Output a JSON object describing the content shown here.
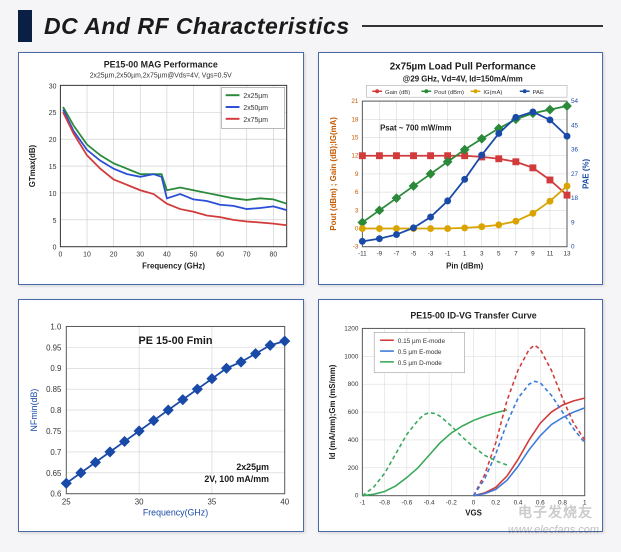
{
  "page": {
    "title": "DC And RF Characteristics",
    "background_color": "#f5f5f7",
    "title_color": "#1a1a1a",
    "title_bar_color": "#0a1f44",
    "watermark_text": "www.elecfans.com",
    "watermark_cn": "电子发烧友"
  },
  "chart_mag": {
    "type": "line",
    "title": "PE15-00 MAG Performance",
    "subtitle": "2x25µm,2x50µm,2x75µm@Vds=4V, Vgs=0.5V",
    "title_fontsize": 9,
    "subtitle_fontsize": 7,
    "xlabel": "Frequency (GHz)",
    "ylabel": "GTmax(dB)",
    "label_fontsize": 8,
    "xlim": [
      0,
      85
    ],
    "ylim": [
      0,
      30
    ],
    "xtick_step": 10,
    "ytick_step": 5,
    "grid_color": "#c9c9c9",
    "background_color": "#ffffff",
    "axis_color": "#333333",
    "legend": [
      {
        "label": "2x25µm",
        "color": "#2a8a3a"
      },
      {
        "label": "2x50µm",
        "color": "#2a4fd6"
      },
      {
        "label": "2x75µm",
        "color": "#d23b3b"
      }
    ],
    "line_width": 1.8,
    "series": {
      "2x25µm": [
        [
          1,
          26
        ],
        [
          5,
          22.5
        ],
        [
          10,
          19
        ],
        [
          15,
          17
        ],
        [
          20,
          15.5
        ],
        [
          25,
          14.5
        ],
        [
          30,
          13.5
        ],
        [
          35,
          13.5
        ],
        [
          38,
          13.5
        ],
        [
          40,
          10.5
        ],
        [
          45,
          11
        ],
        [
          50,
          10.5
        ],
        [
          55,
          10
        ],
        [
          60,
          9.5
        ],
        [
          65,
          9
        ],
        [
          70,
          8.7
        ],
        [
          75,
          9
        ],
        [
          80,
          8.8
        ],
        [
          85,
          8
        ]
      ],
      "2x50µm": [
        [
          1,
          25.5
        ],
        [
          5,
          21.5
        ],
        [
          10,
          18
        ],
        [
          15,
          16
        ],
        [
          20,
          14.5
        ],
        [
          25,
          13.5
        ],
        [
          30,
          13
        ],
        [
          35,
          13.5
        ],
        [
          38,
          13
        ],
        [
          40,
          9
        ],
        [
          45,
          9.8
        ],
        [
          50,
          8.8
        ],
        [
          55,
          8.5
        ],
        [
          60,
          7.8
        ],
        [
          65,
          7.6
        ],
        [
          70,
          7
        ],
        [
          75,
          7.2
        ],
        [
          80,
          7.5
        ],
        [
          85,
          6.8
        ]
      ],
      "2x75µm": [
        [
          1,
          25
        ],
        [
          5,
          21
        ],
        [
          10,
          17
        ],
        [
          15,
          14.5
        ],
        [
          20,
          12.5
        ],
        [
          25,
          11.5
        ],
        [
          30,
          10.5
        ],
        [
          35,
          9.8
        ],
        [
          40,
          8
        ],
        [
          45,
          7
        ],
        [
          50,
          6.5
        ],
        [
          55,
          5.8
        ],
        [
          60,
          5.5
        ],
        [
          65,
          5
        ],
        [
          70,
          4.7
        ],
        [
          75,
          4.5
        ],
        [
          80,
          4.3
        ],
        [
          85,
          4
        ]
      ]
    }
  },
  "chart_loadpull": {
    "type": "multi-line",
    "title": "2x75µm Load Pull Performance",
    "subtitle": "@29 GHz, Vd=4V, Id=150mA/mm",
    "title_fontsize": 10,
    "subtitle_fontsize": 8,
    "annotation": "Psat ~ 700 mW/mm",
    "annotation_fontsize": 8,
    "xlabel": "Pin (dBm)",
    "ylabel_left": "Pout (dBm) ; Gain (dB);IG(mA)",
    "ylabel_right": "PAE (%)",
    "label_fontsize": 8,
    "xlim": [
      -11,
      13
    ],
    "ylim_left": [
      -3,
      21
    ],
    "ylim_right": [
      0,
      54
    ],
    "xtick_step": 2,
    "ytick_left_step": 3,
    "ytick_right_step": 9,
    "grid_color": "#d0d0d0",
    "background_color": "#ffffff",
    "axis_left_color": "#c75a00",
    "axis_right_color": "#1a4aa8",
    "legend": [
      {
        "label": "Gain (dB)",
        "color": "#d23b3b",
        "marker": "square"
      },
      {
        "label": "Pout (dBm)",
        "color": "#2a8a3a",
        "marker": "diamond"
      },
      {
        "label": "IG(mA)",
        "color": "#d9a400",
        "marker": "circle"
      },
      {
        "label": "PAE",
        "color": "#1a4aa8",
        "marker": "circle"
      }
    ],
    "line_width": 1.8,
    "marker_size": 3.5,
    "series": {
      "gain": [
        [
          -11,
          12
        ],
        [
          -9,
          12
        ],
        [
          -7,
          12
        ],
        [
          -5,
          12
        ],
        [
          -3,
          12
        ],
        [
          -1,
          12
        ],
        [
          1,
          12
        ],
        [
          3,
          11.8
        ],
        [
          5,
          11.5
        ],
        [
          7,
          11
        ],
        [
          9,
          10
        ],
        [
          11,
          8
        ],
        [
          13,
          5.5
        ]
      ],
      "pout": [
        [
          -11,
          1
        ],
        [
          -9,
          3
        ],
        [
          -7,
          5
        ],
        [
          -5,
          7
        ],
        [
          -3,
          9
        ],
        [
          -1,
          11
        ],
        [
          1,
          13
        ],
        [
          3,
          14.8
        ],
        [
          5,
          16.5
        ],
        [
          7,
          18
        ],
        [
          9,
          19
        ],
        [
          11,
          19.6
        ],
        [
          13,
          20.2
        ]
      ],
      "ig": [
        [
          -11,
          0
        ],
        [
          -9,
          0
        ],
        [
          -7,
          0
        ],
        [
          -5,
          0
        ],
        [
          -3,
          0
        ],
        [
          -1,
          0
        ],
        [
          1,
          0.1
        ],
        [
          3,
          0.3
        ],
        [
          5,
          0.6
        ],
        [
          7,
          1.2
        ],
        [
          9,
          2.5
        ],
        [
          11,
          4.5
        ],
        [
          13,
          7
        ]
      ],
      "pae": [
        [
          -11,
          2
        ],
        [
          -9,
          3
        ],
        [
          -7,
          4.5
        ],
        [
          -5,
          7
        ],
        [
          -3,
          11
        ],
        [
          -1,
          17
        ],
        [
          1,
          25
        ],
        [
          3,
          34
        ],
        [
          5,
          42
        ],
        [
          7,
          48
        ],
        [
          9,
          50
        ],
        [
          11,
          47
        ],
        [
          13,
          41
        ]
      ]
    }
  },
  "chart_fmin": {
    "type": "line",
    "title": "PE 15-00 Fmin",
    "title_fontsize": 11,
    "xlabel": "Frequency(GHz)",
    "ylabel": "NFmin(dB)",
    "label_fontsize": 9,
    "xlim": [
      25,
      40
    ],
    "ylim": [
      0.6,
      1.0
    ],
    "xticks": [
      25,
      30,
      35,
      40
    ],
    "yticks": [
      0.6,
      0.65,
      0.7,
      0.75,
      0.8,
      0.85,
      0.9,
      0.95,
      1.0
    ],
    "grid_color": "#d0d0d0",
    "background_color": "#ffffff",
    "series_color": "#1a4aa8",
    "marker": "diamond",
    "marker_size": 4,
    "line_width": 1.8,
    "annotation": "2x25µm\n2V, 100 mA/mm",
    "annotation_fontsize": 9,
    "data": [
      [
        25,
        0.625
      ],
      [
        26,
        0.65
      ],
      [
        27,
        0.675
      ],
      [
        28,
        0.7
      ],
      [
        29,
        0.725
      ],
      [
        30,
        0.75
      ],
      [
        31,
        0.775
      ],
      [
        32,
        0.8
      ],
      [
        33,
        0.825
      ],
      [
        34,
        0.85
      ],
      [
        35,
        0.875
      ],
      [
        36,
        0.9
      ],
      [
        37,
        0.915
      ],
      [
        38,
        0.935
      ],
      [
        39,
        0.955
      ],
      [
        40,
        0.965
      ]
    ]
  },
  "chart_idvg": {
    "type": "multi-line",
    "title": "PE15-00 ID-VG Transfer Curve",
    "title_fontsize": 9,
    "xlabel": "VGS",
    "ylabel": "Id (mA/mm);Gm (mS/mm)",
    "label_fontsize": 8,
    "xlim": [
      -1.0,
      1.0
    ],
    "ylim": [
      0,
      1200
    ],
    "xticks": [
      -1.0,
      -0.8,
      -0.6,
      -0.4,
      -0.2,
      0,
      0.2,
      0.4,
      0.6,
      0.8,
      1.0
    ],
    "ytick_step": 200,
    "grid_color": "#d6d6d6",
    "background_color": "#ffffff",
    "legend": [
      {
        "label": "0.15 µm E-mode",
        "color": "#d23b3b"
      },
      {
        "label": "0.5 µm E-mode",
        "color": "#3a7ad9"
      },
      {
        "label": "0.5 µm D-mode",
        "color": "#3aa85a"
      }
    ],
    "line_width": 1.6,
    "series_id": {
      "015E": [
        [
          0.0,
          0
        ],
        [
          0.1,
          20
        ],
        [
          0.2,
          60
        ],
        [
          0.3,
          140
        ],
        [
          0.4,
          260
        ],
        [
          0.5,
          400
        ],
        [
          0.6,
          520
        ],
        [
          0.7,
          600
        ],
        [
          0.8,
          650
        ],
        [
          0.9,
          680
        ],
        [
          1.0,
          700
        ]
      ],
      "05E": [
        [
          0.0,
          0
        ],
        [
          0.1,
          15
        ],
        [
          0.2,
          45
        ],
        [
          0.3,
          110
        ],
        [
          0.4,
          210
        ],
        [
          0.5,
          330
        ],
        [
          0.6,
          430
        ],
        [
          0.7,
          510
        ],
        [
          0.8,
          560
        ],
        [
          0.9,
          600
        ],
        [
          1.0,
          630
        ]
      ],
      "05D": [
        [
          -1.0,
          0
        ],
        [
          -0.9,
          10
        ],
        [
          -0.8,
          30
        ],
        [
          -0.7,
          70
        ],
        [
          -0.6,
          130
        ],
        [
          -0.5,
          200
        ],
        [
          -0.4,
          290
        ],
        [
          -0.3,
          380
        ],
        [
          -0.2,
          450
        ],
        [
          -0.1,
          500
        ],
        [
          0.0,
          540
        ],
        [
          0.1,
          570
        ],
        [
          0.2,
          595
        ],
        [
          0.3,
          615
        ]
      ]
    },
    "series_gm": {
      "015E": [
        [
          0.0,
          0
        ],
        [
          0.1,
          150
        ],
        [
          0.2,
          380
        ],
        [
          0.3,
          680
        ],
        [
          0.4,
          900
        ],
        [
          0.5,
          1050
        ],
        [
          0.55,
          1080
        ],
        [
          0.6,
          1050
        ],
        [
          0.7,
          900
        ],
        [
          0.8,
          700
        ],
        [
          0.9,
          520
        ],
        [
          1.0,
          400
        ]
      ],
      "05E": [
        [
          0.0,
          0
        ],
        [
          0.1,
          120
        ],
        [
          0.2,
          300
        ],
        [
          0.3,
          520
        ],
        [
          0.4,
          700
        ],
        [
          0.5,
          800
        ],
        [
          0.55,
          820
        ],
        [
          0.6,
          810
        ],
        [
          0.7,
          720
        ],
        [
          0.8,
          600
        ],
        [
          0.9,
          480
        ],
        [
          1.0,
          380
        ]
      ],
      "05D": [
        [
          -1.0,
          0
        ],
        [
          -0.9,
          60
        ],
        [
          -0.8,
          160
        ],
        [
          -0.7,
          300
        ],
        [
          -0.6,
          440
        ],
        [
          -0.5,
          540
        ],
        [
          -0.45,
          580
        ],
        [
          -0.4,
          595
        ],
        [
          -0.35,
          590
        ],
        [
          -0.3,
          570
        ],
        [
          -0.2,
          500
        ],
        [
          -0.1,
          420
        ],
        [
          0.0,
          350
        ],
        [
          0.1,
          290
        ],
        [
          0.2,
          250
        ],
        [
          0.3,
          220
        ]
      ]
    }
  }
}
